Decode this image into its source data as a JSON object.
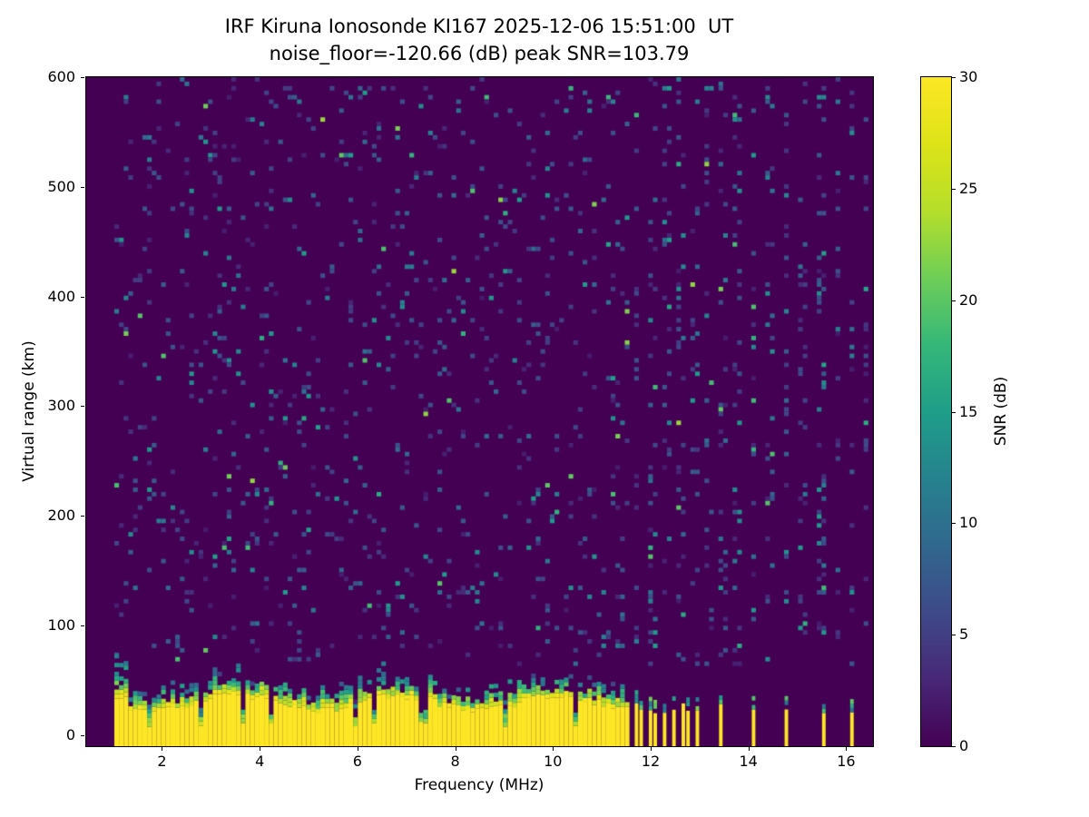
{
  "figure": {
    "background_color": "#ffffff",
    "text_color": "#000000"
  },
  "chart_data": {
    "type": "heatmap",
    "title": "IRF Kiruna Ionosonde KI167 2025-12-06 15:51:00  UT",
    "subtitle": "noise_floor=-120.66 (dB) peak SNR=103.79",
    "xlabel": "Frequency (MHz)",
    "ylabel": "Virtual range (km)",
    "x_ticks_mhz": [
      2,
      4,
      6,
      8,
      10,
      12,
      14,
      16
    ],
    "y_ticks_km": [
      0,
      100,
      200,
      300,
      400,
      500,
      600
    ],
    "x_range_mhz": [
      0.45,
      16.55
    ],
    "y_range_km": [
      -10,
      600
    ],
    "grid_off": true,
    "colorbar": {
      "label": "SNR (dB)",
      "ticks_db": [
        0,
        5,
        10,
        15,
        20,
        25,
        30
      ],
      "range_db": [
        0,
        30
      ],
      "colormap": "viridis",
      "position": "right",
      "stops": [
        [
          0.0,
          "#440154"
        ],
        [
          0.1,
          "#482878"
        ],
        [
          0.2,
          "#3e4a89"
        ],
        [
          0.3,
          "#31688e"
        ],
        [
          0.4,
          "#26828e"
        ],
        [
          0.5,
          "#1f9e89"
        ],
        [
          0.6,
          "#35b779"
        ],
        [
          0.7,
          "#6ece58"
        ],
        [
          0.8,
          "#b5de2b"
        ],
        [
          0.9,
          "#dde318"
        ],
        [
          1.0,
          "#fde725"
        ]
      ]
    },
    "features": {
      "sweep_start_mhz": 1.0,
      "continuous_sweep_end_mhz": 11.6,
      "ground_pulse_band": {
        "km_min": -10,
        "km_top_typical": 28,
        "km_fuzz_top_typical": 50,
        "value_db": 30,
        "taller_fuzz_below_mhz": 1.3
      },
      "notch_frequencies_mhz": [
        1.72,
        2.78,
        3.64,
        4.26,
        5.95,
        6.32,
        7.36,
        9.05,
        10.45
      ],
      "sparse_bar_frequencies_mhz": [
        11.67,
        11.82,
        11.98,
        12.14,
        12.31,
        12.47,
        12.64,
        12.81,
        12.98,
        13.48,
        14.12,
        14.78,
        15.5,
        16.13
      ],
      "sparse_noise_column_frequencies_mhz": [
        11.72,
        12.05,
        12.33,
        12.62,
        12.9,
        13.18,
        13.48,
        13.78,
        14.12,
        14.45,
        14.78,
        15.12,
        15.5,
        15.85,
        16.13,
        16.4
      ],
      "background_noise": {
        "density": 0.055,
        "typical_db_low": 2,
        "typical_db_high": 15
      },
      "seed": 167
    }
  }
}
